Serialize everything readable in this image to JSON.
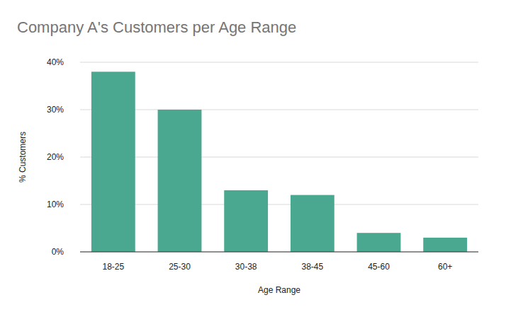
{
  "chart_data": {
    "type": "bar",
    "title": "Company A's Customers per Age Range",
    "x_label": "Age Range",
    "y_label": "% Customers",
    "categories": [
      "18-25",
      "25-30",
      "30-38",
      "38-45",
      "45-60",
      "60+"
    ],
    "values": [
      38,
      30,
      13,
      12,
      4,
      3
    ],
    "color": "#4aa891",
    "ylim": [
      0,
      40
    ],
    "yticks": [
      {
        "value": 0,
        "label": "0%"
      },
      {
        "value": 10,
        "label": "10%"
      },
      {
        "value": 20,
        "label": "20%"
      },
      {
        "value": 30,
        "label": "30%"
      },
      {
        "value": 40,
        "label": "40%"
      }
    ],
    "grid": true
  }
}
